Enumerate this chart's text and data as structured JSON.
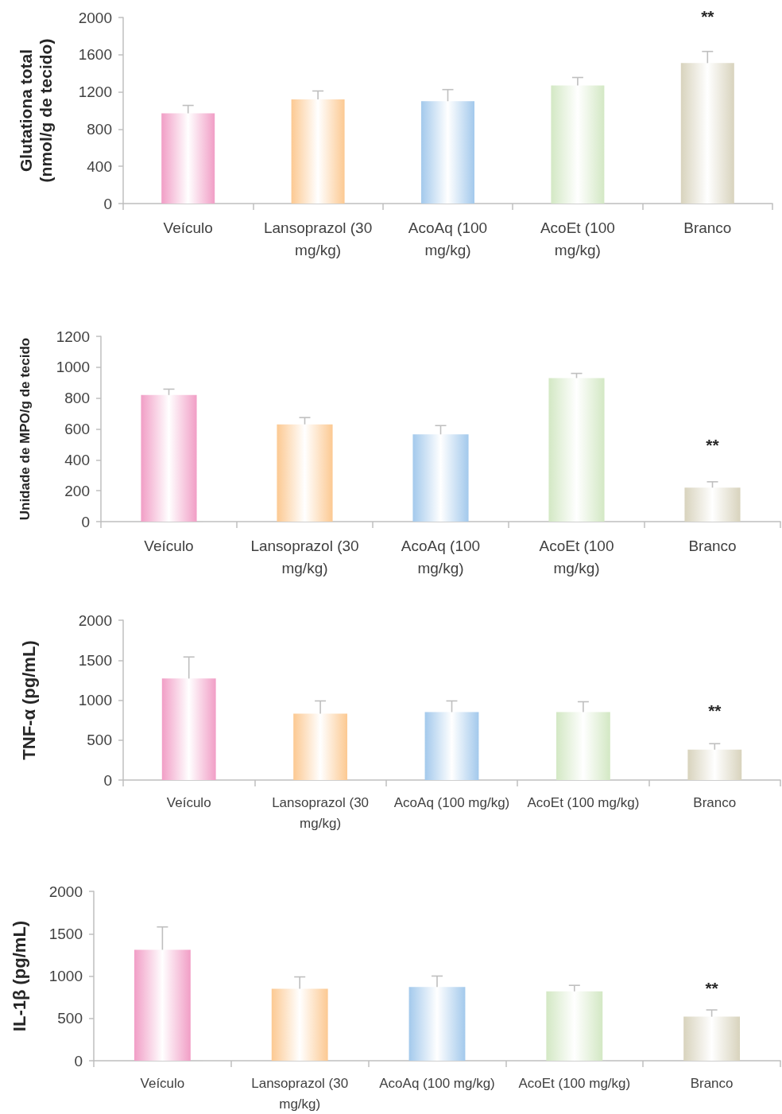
{
  "chart_data": [
    {
      "type": "bar",
      "ylabel": "Glutationa total\n(nmol/g de tecido)",
      "categories": [
        "Veículo",
        "Lansoprazol (30 mg/kg)",
        "AcoAq (100 mg/kg)",
        "AcoEt (100 mg/kg)",
        "Branco"
      ],
      "values": [
        970,
        1120,
        1100,
        1270,
        1510
      ],
      "colors": [
        "#f19ec6",
        "#fcc992",
        "#a3c9ec",
        "#d3e8c4",
        "#d8d3bd"
      ],
      "errors": [
        [
          970,
          1055
        ],
        [
          1120,
          1210
        ],
        [
          1100,
          1225
        ],
        [
          1270,
          1355
        ],
        [
          1510,
          1635
        ]
      ],
      "ylim": [
        0,
        2000
      ],
      "yticks": [
        0,
        400,
        800,
        1200,
        1600,
        2000
      ],
      "grid": false,
      "annotations": [
        "**"
      ]
    },
    {
      "type": "bar",
      "ylabel": "Unidade de MPO/g de tecido",
      "categories": [
        "Veículo",
        "Lansoprazol (30 mg/kg)",
        "AcoAq (100 mg/kg)",
        "AcoEt (100 mg/kg)",
        "Branco"
      ],
      "values": [
        820,
        630,
        565,
        930,
        220
      ],
      "colors": [
        "#f19ec6",
        "#fcc992",
        "#a3c9ec",
        "#d3e8c4",
        "#d8d3bd"
      ],
      "errors": [
        [
          820,
          858
        ],
        [
          630,
          674
        ],
        [
          565,
          622
        ],
        [
          930,
          960
        ],
        [
          220,
          258
        ]
      ],
      "ylim": [
        0,
        1200
      ],
      "yticks": [
        0,
        200,
        400,
        600,
        800,
        1000,
        1200
      ],
      "grid": false,
      "annotations": [
        "**"
      ]
    },
    {
      "type": "bar",
      "ylabel": "TNF-α (pg/mL)",
      "categories": [
        "Veículo",
        "Lansoprazol (30 mg/kg)",
        "AcoAq (100 mg/kg)",
        "AcoEt (100 mg/kg)",
        "Branco"
      ],
      "values": [
        1270,
        830,
        850,
        850,
        380
      ],
      "colors": [
        "#f19ec6",
        "#fcc992",
        "#a3c9ec",
        "#d3e8c4",
        "#d8d3bd"
      ],
      "errors": [
        [
          1270,
          1540
        ],
        [
          830,
          990
        ],
        [
          850,
          990
        ],
        [
          850,
          980
        ],
        [
          380,
          455
        ]
      ],
      "ylim": [
        0,
        2000
      ],
      "yticks": [
        0,
        500,
        1000,
        1500,
        2000
      ],
      "grid": false,
      "annotations": [
        "**"
      ]
    },
    {
      "type": "bar",
      "ylabel": "IL-1β (pg/mL)",
      "categories": [
        "Veículo",
        "Lansoprazol (30 mg/kg)",
        "AcoAq (100 mg/kg)",
        "AcoEt (100 mg/kg)",
        "Branco"
      ],
      "values": [
        1310,
        850,
        870,
        820,
        520
      ],
      "colors": [
        "#f19ec6",
        "#fcc992",
        "#a3c9ec",
        "#d3e8c4",
        "#d8d3bd"
      ],
      "errors": [
        [
          1310,
          1580
        ],
        [
          850,
          990
        ],
        [
          870,
          1000
        ],
        [
          820,
          890
        ],
        [
          520,
          600
        ]
      ],
      "ylim": [
        0,
        2000
      ],
      "yticks": [
        0,
        500,
        1000,
        1500,
        2000
      ],
      "grid": false,
      "annotations": [
        "**"
      ]
    }
  ]
}
